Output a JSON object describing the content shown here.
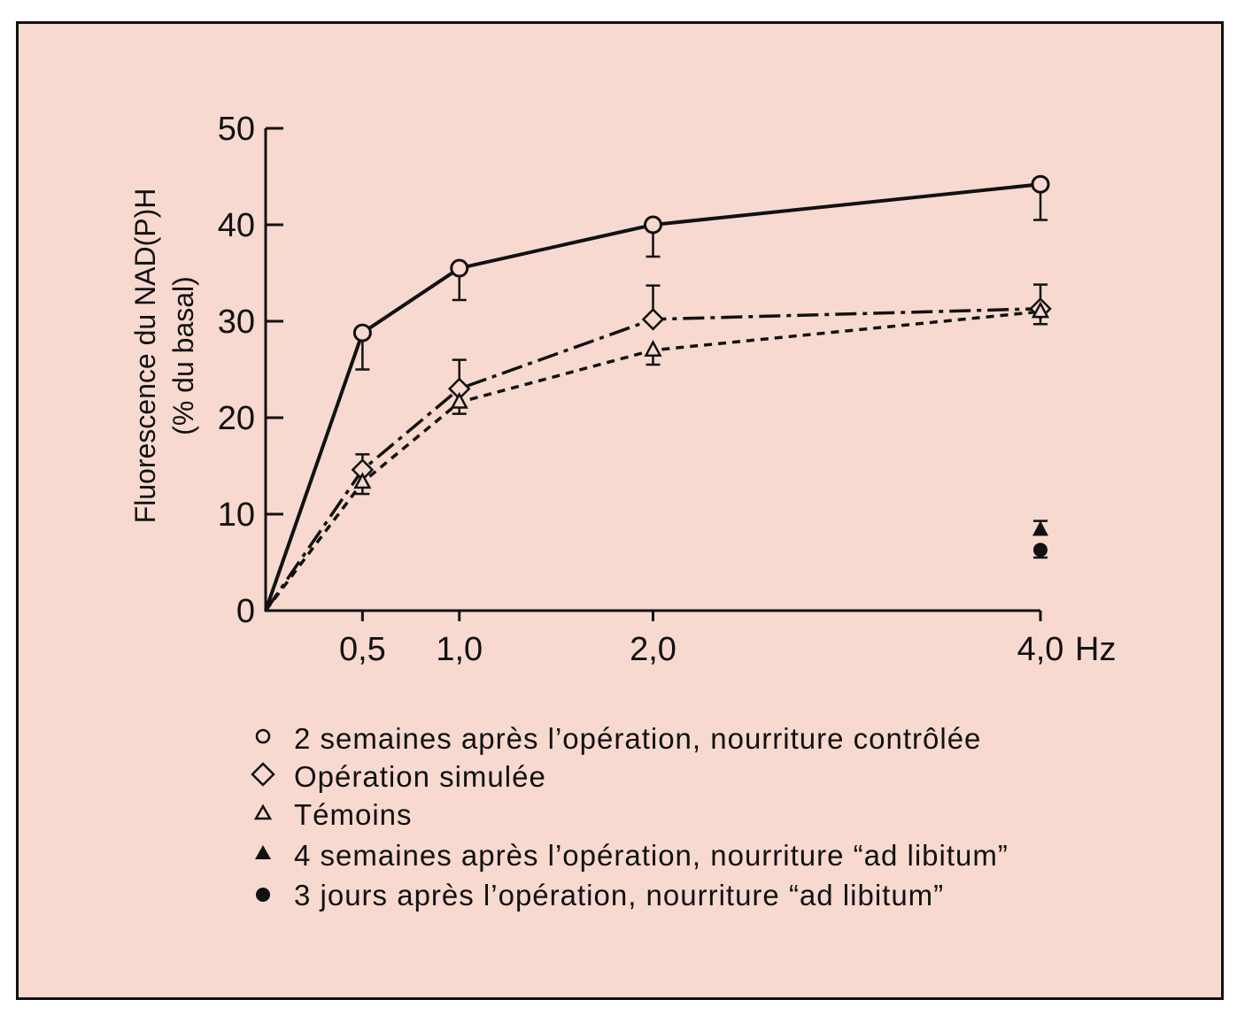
{
  "colors": {
    "background": "#f7d9d0",
    "ink": "#111111"
  },
  "chart_data": {
    "type": "line",
    "xlabel_unit": "Hz",
    "ylabel_line1": "Fluorescence du NAD(P)H",
    "ylabel_line2": "(% du basal)",
    "x_ticks": [
      "0,5",
      "1,0",
      "2,0",
      "4,0"
    ],
    "x_tick_values": [
      0.5,
      1.0,
      2.0,
      4.0
    ],
    "y_ticks": [
      "0",
      "10",
      "20",
      "30",
      "40",
      "50"
    ],
    "y_tick_values": [
      0,
      10,
      20,
      30,
      40,
      50
    ],
    "xlim": [
      0,
      4.0
    ],
    "ylim": [
      0,
      50
    ],
    "grid": false,
    "legend_position": "bottom",
    "series": [
      {
        "name": "2 semaines après l’opération, nourriture contrôlée",
        "marker": "circle-open",
        "line": "solid",
        "x": [
          0,
          0.5,
          1.0,
          2.0,
          4.0
        ],
        "y": [
          0,
          28.8,
          35.5,
          40.0,
          44.2
        ],
        "err_low": [
          0,
          3.8,
          3.3,
          3.3,
          3.7
        ],
        "err_high": [
          0,
          0,
          0,
          0,
          0
        ]
      },
      {
        "name": "Opération simulée",
        "marker": "diamond-open",
        "line": "dashdot",
        "x": [
          0,
          0.5,
          1.0,
          2.0,
          4.0
        ],
        "y": [
          0,
          14.6,
          23.0,
          30.2,
          31.3
        ],
        "err_low": [
          0,
          0,
          0,
          0,
          0
        ],
        "err_high": [
          0,
          1.6,
          3.0,
          3.5,
          2.5
        ]
      },
      {
        "name": "Témoins",
        "marker": "triangle-open",
        "line": "dashed",
        "x": [
          0,
          0.5,
          1.0,
          2.0,
          4.0
        ],
        "y": [
          0,
          13.3,
          21.6,
          27.0,
          31.0
        ],
        "err_low": [
          0,
          1.2,
          1.2,
          1.5,
          1.3
        ],
        "err_high": [
          0,
          0,
          0,
          0,
          0
        ]
      },
      {
        "name": "4 semaines après l’opération, nourriture “ad libitum”",
        "marker": "triangle-filled",
        "line": "none",
        "x": [
          4.0
        ],
        "y": [
          8.4
        ],
        "err_low": [
          0
        ],
        "err_high": [
          0.9
        ]
      },
      {
        "name": "3 jours après l’opération, nourriture “ad libitum”",
        "marker": "circle-filled",
        "line": "none",
        "x": [
          4.0
        ],
        "y": [
          6.3
        ],
        "err_low": [
          0.8
        ],
        "err_high": [
          0
        ]
      }
    ]
  }
}
